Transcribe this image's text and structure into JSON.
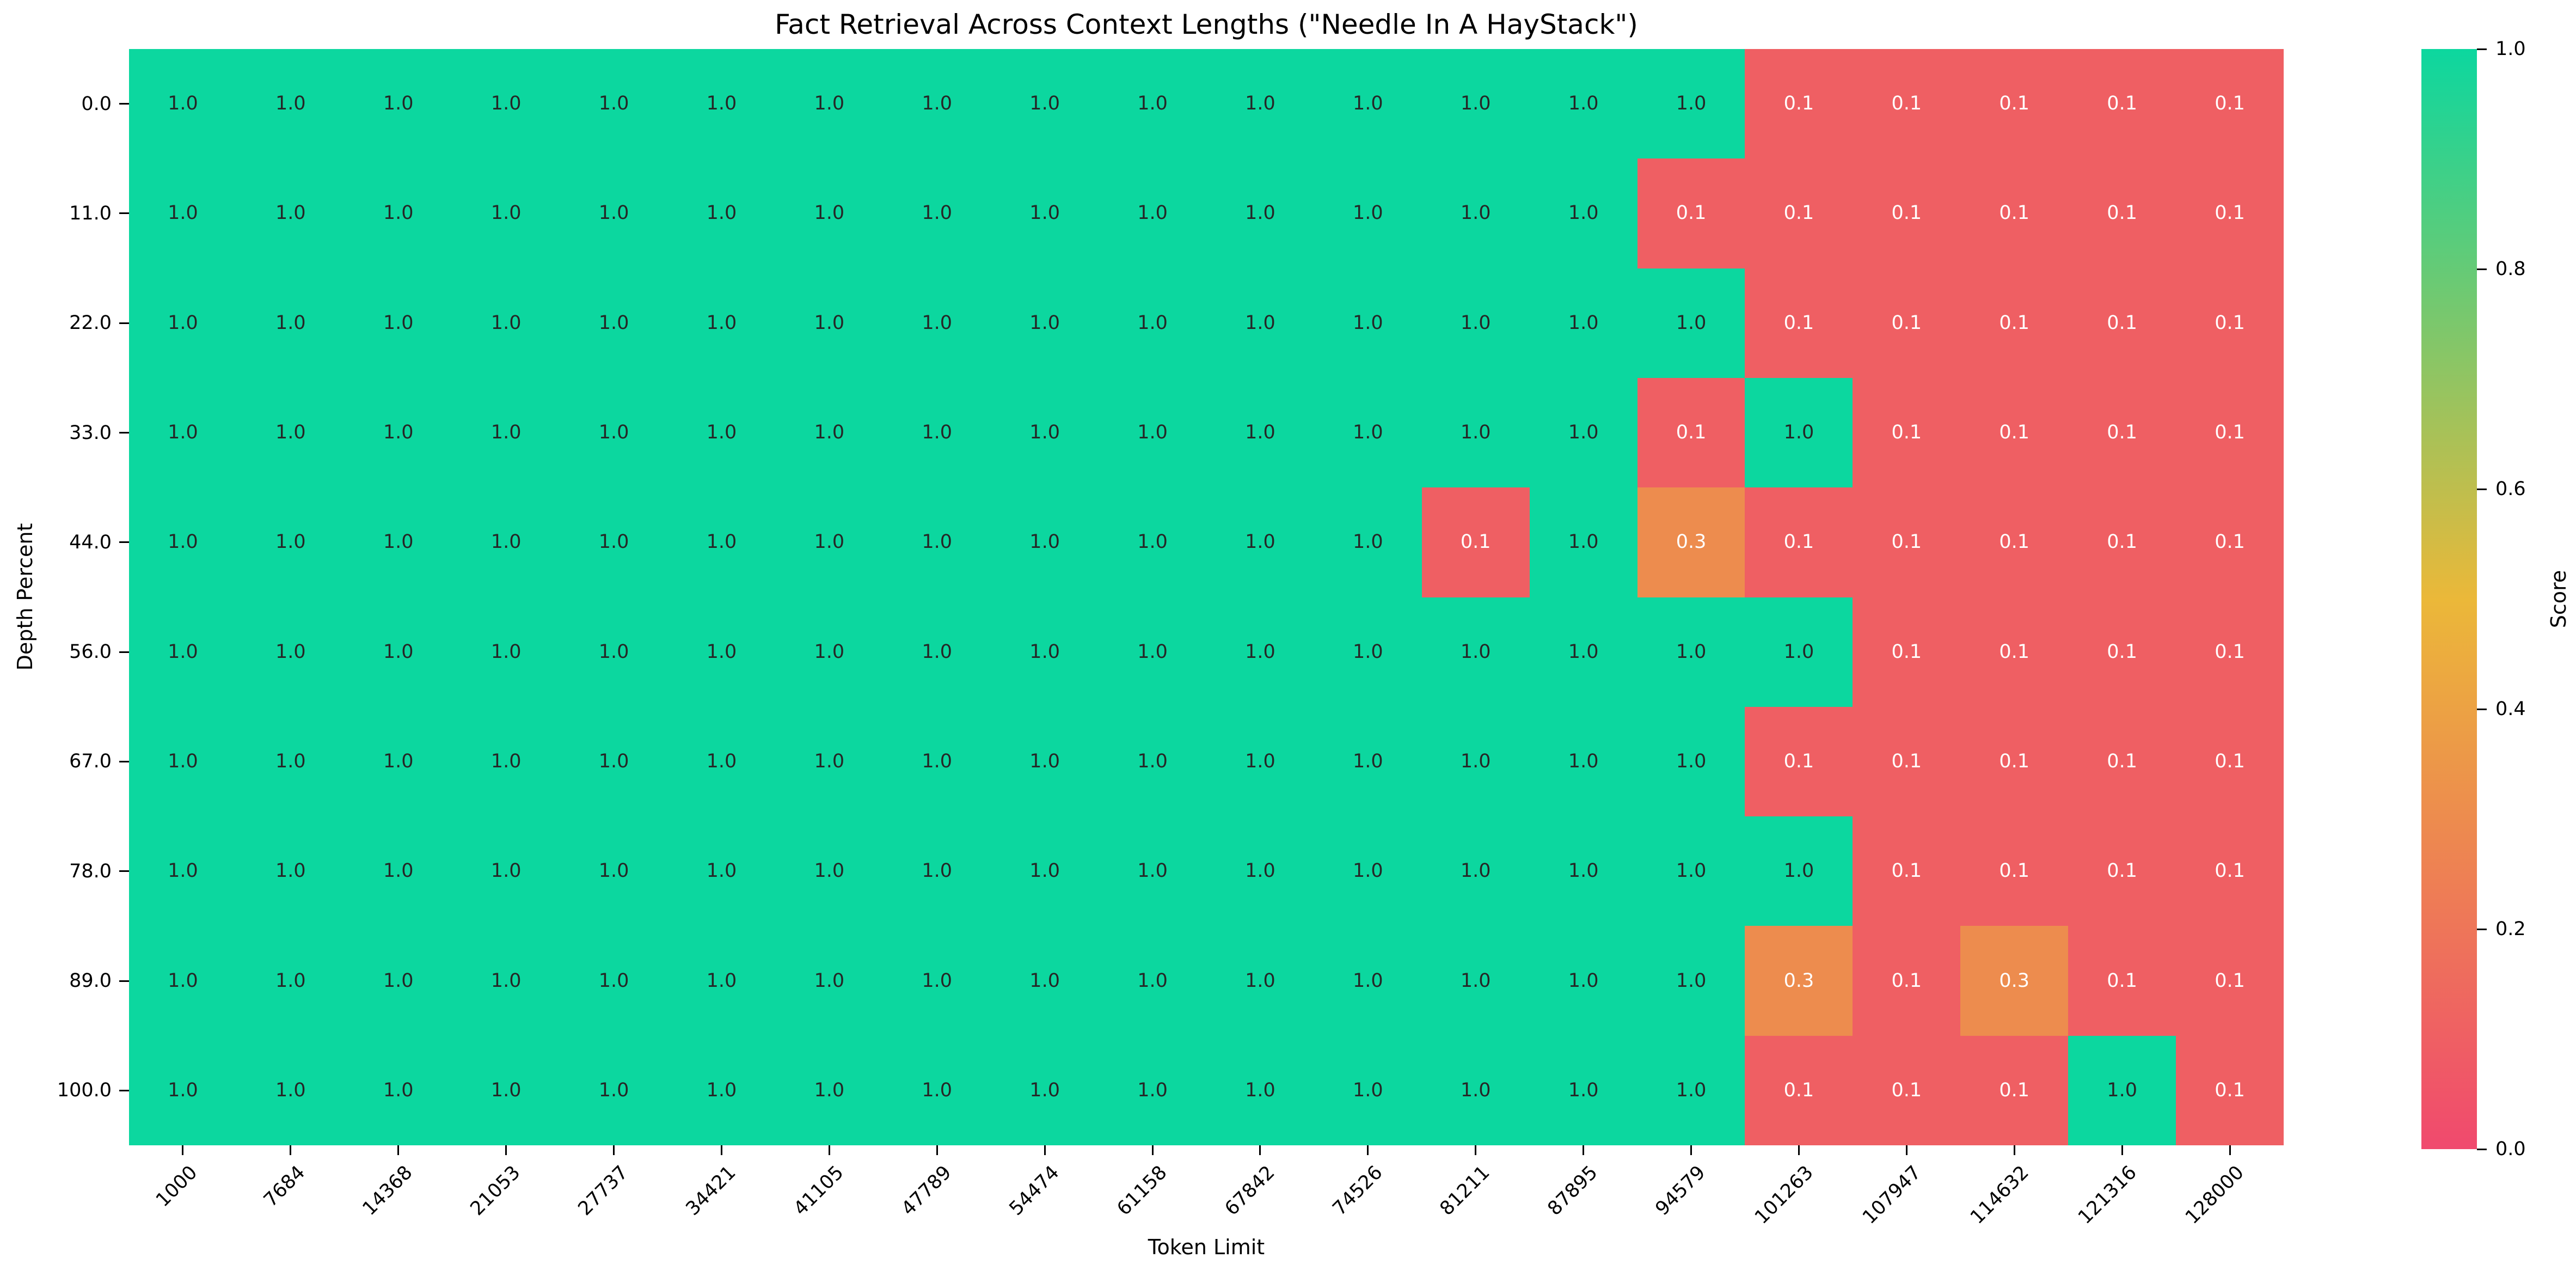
{
  "chart_data": {
    "type": "heatmap",
    "title": "Fact Retrieval Across Context Lengths (\"Needle In A HayStack\")",
    "xlabel": "Token Limit",
    "ylabel": "Depth Percent",
    "x_categories": [
      "1000",
      "7684",
      "14368",
      "21053",
      "27737",
      "34421",
      "41105",
      "47789",
      "54474",
      "61158",
      "67842",
      "74526",
      "81211",
      "87895",
      "94579",
      "101263",
      "107947",
      "114632",
      "121316",
      "128000"
    ],
    "y_categories": [
      "0.0",
      "11.0",
      "22.0",
      "33.0",
      "44.0",
      "56.0",
      "67.0",
      "78.0",
      "89.0",
      "100.0"
    ],
    "values": [
      [
        1.0,
        1.0,
        1.0,
        1.0,
        1.0,
        1.0,
        1.0,
        1.0,
        1.0,
        1.0,
        1.0,
        1.0,
        1.0,
        1.0,
        1.0,
        0.1,
        0.1,
        0.1,
        0.1,
        0.1
      ],
      [
        1.0,
        1.0,
        1.0,
        1.0,
        1.0,
        1.0,
        1.0,
        1.0,
        1.0,
        1.0,
        1.0,
        1.0,
        1.0,
        1.0,
        0.1,
        0.1,
        0.1,
        0.1,
        0.1,
        0.1
      ],
      [
        1.0,
        1.0,
        1.0,
        1.0,
        1.0,
        1.0,
        1.0,
        1.0,
        1.0,
        1.0,
        1.0,
        1.0,
        1.0,
        1.0,
        1.0,
        0.1,
        0.1,
        0.1,
        0.1,
        0.1
      ],
      [
        1.0,
        1.0,
        1.0,
        1.0,
        1.0,
        1.0,
        1.0,
        1.0,
        1.0,
        1.0,
        1.0,
        1.0,
        1.0,
        1.0,
        0.1,
        1.0,
        0.1,
        0.1,
        0.1,
        0.1
      ],
      [
        1.0,
        1.0,
        1.0,
        1.0,
        1.0,
        1.0,
        1.0,
        1.0,
        1.0,
        1.0,
        1.0,
        1.0,
        0.1,
        1.0,
        0.3,
        0.1,
        0.1,
        0.1,
        0.1,
        0.1
      ],
      [
        1.0,
        1.0,
        1.0,
        1.0,
        1.0,
        1.0,
        1.0,
        1.0,
        1.0,
        1.0,
        1.0,
        1.0,
        1.0,
        1.0,
        1.0,
        1.0,
        0.1,
        0.1,
        0.1,
        0.1
      ],
      [
        1.0,
        1.0,
        1.0,
        1.0,
        1.0,
        1.0,
        1.0,
        1.0,
        1.0,
        1.0,
        1.0,
        1.0,
        1.0,
        1.0,
        1.0,
        0.1,
        0.1,
        0.1,
        0.1,
        0.1
      ],
      [
        1.0,
        1.0,
        1.0,
        1.0,
        1.0,
        1.0,
        1.0,
        1.0,
        1.0,
        1.0,
        1.0,
        1.0,
        1.0,
        1.0,
        1.0,
        1.0,
        0.1,
        0.1,
        0.1,
        0.1
      ],
      [
        1.0,
        1.0,
        1.0,
        1.0,
        1.0,
        1.0,
        1.0,
        1.0,
        1.0,
        1.0,
        1.0,
        1.0,
        1.0,
        1.0,
        1.0,
        0.3,
        0.1,
        0.3,
        0.1,
        0.1
      ],
      [
        1.0,
        1.0,
        1.0,
        1.0,
        1.0,
        1.0,
        1.0,
        1.0,
        1.0,
        1.0,
        1.0,
        1.0,
        1.0,
        1.0,
        1.0,
        0.1,
        0.1,
        0.1,
        1.0,
        0.1
      ]
    ],
    "value_range": [
      0.0,
      1.0
    ],
    "grid": false,
    "colorbar": {
      "label": "Score",
      "ticks": [
        1.0,
        0.8,
        0.6,
        0.4,
        0.2,
        0.0
      ],
      "position": "right"
    },
    "colormap_anchors": [
      {
        "t": 0.0,
        "color": "#F0496E"
      },
      {
        "t": 0.5,
        "color": "#EBB839"
      },
      {
        "t": 1.0,
        "color": "#0CD79F"
      }
    ],
    "annotation_colors": {
      "dark": "#262626",
      "light": "#ffffff"
    }
  }
}
